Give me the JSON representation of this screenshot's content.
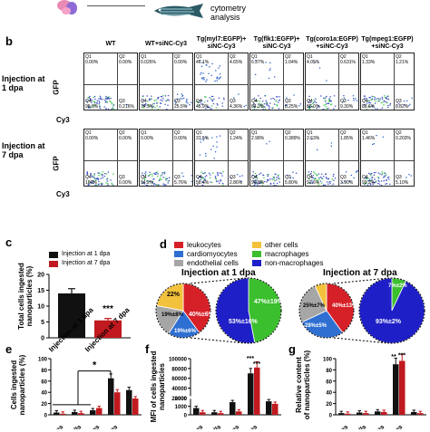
{
  "top": {
    "cytometry_line1": "cytometry",
    "cytometry_line2": "analysis"
  },
  "panel_b": {
    "label": "b",
    "columns": [
      "WT",
      "WT+siNC-Cy3",
      "Tg(myl7:EGFP)+\nsiNC-Cy3",
      "Tg(flk1:EGFP)+\nsiNC-Cy3",
      "Tg(coro1a:EGFP)\n+siNC-Cy3",
      "Tg(mpeg1:EGFP)\n+siNC-Cy3"
    ],
    "row1_label": "Injection at\n1 dpa",
    "row2_label": "Injection at\n7 dpa",
    "y_axis": "GFP",
    "x_axis": "Cy3",
    "row1": [
      {
        "q1": "Q1",
        "q1v": "0.00%",
        "q2": "Q2",
        "q2v": "0.00%",
        "q3": "Q3",
        "q3v": "0.216%",
        "q4": "Q4",
        "q4v": "99.8%"
      },
      {
        "q1": "Q1",
        "q1v": "0.026%",
        "q2": "Q2",
        "q2v": "0.00%",
        "q3": "Q3",
        "q3v": "25.5%",
        "q4": "Q4",
        "q4v": "74.5%"
      },
      {
        "q1": "Q1",
        "q1v": "46.1%",
        "q2": "Q2",
        "q2v": "4.65%",
        "q3": "Q3",
        "q3v": "4.36%",
        "q4": "Q4",
        "q4v": "45.9%"
      },
      {
        "q1": "Q1",
        "q1v": "6.37%",
        "q2": "Q2",
        "q2v": "1.04%",
        "q3": "Q3",
        "q3v": "8.25%",
        "q4": "Q4",
        "q4v": "84.3%"
      },
      {
        "q1": "Q1",
        "q1v": "4.05%",
        "q2": "Q2",
        "q2v": "0.631%",
        "q3": "Q3",
        "q3v": "9.30%",
        "q4": "Q4",
        "q4v": "86.0%"
      },
      {
        "q1": "Q1",
        "q1v": "1.33%",
        "q2": "Q2",
        "q2v": "1.21%",
        "q3": "Q3",
        "q3v": "8.82%",
        "q4": "Q4",
        "q4v": "88.6%"
      }
    ],
    "row2": [
      {
        "q1": "Q1",
        "q1v": "0.00%",
        "q2": "Q2",
        "q2v": "0.00%",
        "q3": "Q3",
        "q3v": "0.00%",
        "q4": "Q4",
        "q4v": "100%"
      },
      {
        "q1": "Q1",
        "q1v": "0.00%",
        "q2": "Q2",
        "q2v": "0.00%",
        "q3": "Q3",
        "q3v": "5.76%",
        "q4": "Q4",
        "q4v": "94.2%"
      },
      {
        "q1": "Q1",
        "q1v": "37.5%",
        "q2": "Q2",
        "q2v": "1.24%",
        "q3": "Q3",
        "q3v": "2.86%",
        "q4": "Q4",
        "q4v": "58.4%"
      },
      {
        "q1": "Q1",
        "q1v": "2.98%",
        "q2": "Q2",
        "q2v": "0.389%",
        "q3": "Q3",
        "q3v": "5.80%",
        "q4": "Q4",
        "q4v": "90.8%"
      },
      {
        "q1": "Q1",
        "q1v": "2.63%",
        "q2": "Q2",
        "q2v": "1.85%",
        "q3": "Q3",
        "q3v": "3.90%",
        "q4": "Q4",
        "q4v": "91.6%"
      },
      {
        "q1": "Q1",
        "q1v": "1.46%",
        "q2": "Q2",
        "q2v": "0.203%",
        "q3": "Q3",
        "q3v": "5.10%",
        "q4": "Q4",
        "q4v": "93.2%"
      }
    ]
  },
  "panel_c": {
    "label": "c",
    "legend": [
      "Injection at 1 dpa",
      "Injection at 7 dpa"
    ],
    "ylabel": "Total cells ingested\nnanoparticles (%)",
    "significance": "***",
    "chart_data": {
      "type": "bar",
      "categories": [
        "Injection at 1 dpa",
        "Injection at 7 dpa"
      ],
      "values": [
        14,
        5.5
      ],
      "errors": [
        1.5,
        0.6
      ],
      "colors": [
        "#111111",
        "#c0191f"
      ],
      "yticks": [
        "0",
        "5",
        "10",
        "15",
        "20"
      ],
      "ylim": [
        0,
        20
      ]
    }
  },
  "panel_d": {
    "label": "d",
    "legend": [
      {
        "name": "leukocytes",
        "color": "#d62027"
      },
      {
        "name": "other cells",
        "color": "#f3c23c"
      },
      {
        "name": "cardiomyocytes",
        "color": "#2f6fd1"
      },
      {
        "name": "macrophages",
        "color": "#3bbf2e"
      },
      {
        "name": "endothelial cells",
        "color": "#a6a6a6"
      },
      {
        "name": "non-macrophages",
        "color": "#1f1fc8"
      }
    ],
    "title1": "Injection at 1 dpa",
    "title2": "Injection at 7 dpa",
    "pie1_labels": [
      "22%",
      "40%±6%",
      "19%±8%",
      "19%±6%"
    ],
    "pie1b_labels": [
      "47%±19%",
      "53%±16%"
    ],
    "pie2_labels": [
      "25%±7%",
      "40%±13%",
      "28%±5%"
    ],
    "pie2b_labels": [
      "7%±2%",
      "93%±2%"
    ],
    "chart_data": [
      {
        "type": "pie",
        "values": [
          40,
          19,
          19,
          22
        ],
        "labels": [
          "leukocytes",
          "cardiomyocytes",
          "endothelial cells",
          "other cells"
        ]
      },
      {
        "type": "pie",
        "values": [
          47,
          53
        ],
        "labels": [
          "macrophages",
          "non-macrophages"
        ]
      },
      {
        "type": "pie",
        "values": [
          40,
          28,
          25,
          7
        ],
        "labels": [
          "leukocytes",
          "cardiomyocytes",
          "endothelial cells",
          "other cells"
        ]
      },
      {
        "type": "pie",
        "values": [
          7,
          93
        ],
        "labels": [
          "macrophages",
          "non-macrophages"
        ]
      }
    ]
  },
  "panel_e": {
    "label": "e",
    "ylabel": "Cells ingested\nnanoparticles (%)",
    "significance": "*",
    "yticks": [
      "0",
      "20",
      "40",
      "60",
      "80",
      "100"
    ],
    "xticks": [
      "es",
      "ells",
      "ges",
      "ges"
    ],
    "chart_data": {
      "type": "bar",
      "categories": [
        "1",
        "2",
        "3",
        "4",
        "5"
      ],
      "series": [
        {
          "name": "Injection at 1 dpa",
          "values": [
            4,
            5,
            8,
            65,
            44
          ]
        },
        {
          "name": "Injection at 7 dpa",
          "values": [
            2,
            3,
            12,
            40,
            29
          ]
        }
      ],
      "ylim": [
        0,
        100
      ]
    }
  },
  "panel_f": {
    "label": "f",
    "ylabel": "MFI of cells ingested\nnanoparticles",
    "yticks": [
      "0",
      "1000",
      "2000",
      "20000",
      "40000",
      "60000",
      "80000",
      "100000"
    ],
    "xticks": [
      "es",
      "ells",
      "es",
      "ges"
    ],
    "significance": [
      "***",
      "***"
    ],
    "chart_data": {
      "type": "bar",
      "categories": [
        "1",
        "2",
        "3",
        "4",
        "5"
      ],
      "series": [
        {
          "name": "Injection at 1 dpa",
          "values": [
            800,
            300,
            1500,
            70000,
            1600
          ]
        },
        {
          "name": "Injection at 7 dpa",
          "values": [
            300,
            200,
            400,
            82000,
            1300
          ]
        }
      ]
    }
  },
  "panel_g": {
    "label": "g",
    "ylabel": "Relative content\nof nanoparticles (%)",
    "yticks": [
      "0",
      "20",
      "40",
      "60",
      "80",
      "100"
    ],
    "xticks": [
      "es",
      "ells",
      "es",
      "ges"
    ],
    "significance": [
      "**",
      "***"
    ],
    "chart_data": {
      "type": "bar",
      "categories": [
        "1",
        "2",
        "3",
        "4",
        "5"
      ],
      "series": [
        {
          "name": "Injection at 1 dpa",
          "values": [
            3,
            4,
            6,
            90,
            5
          ]
        },
        {
          "name": "Injection at 7 dpa",
          "values": [
            2,
            3,
            5,
            96,
            3
          ]
        }
      ],
      "ylim": [
        0,
        100
      ]
    }
  }
}
